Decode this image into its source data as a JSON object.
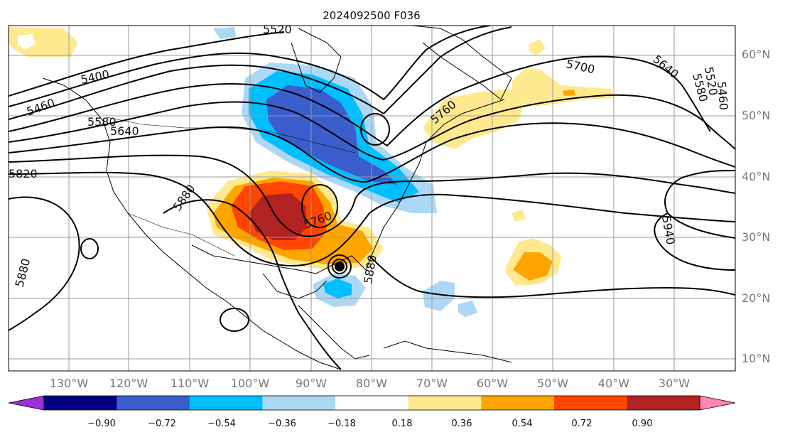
{
  "title": "2024092500 F036",
  "lon_ticks": [
    "130°W",
    "120°W",
    "110°W",
    "100°W",
    "90°W",
    "80°W",
    "70°W",
    "60°W",
    "50°W",
    "40°W",
    "30°W"
  ],
  "lat_ticks": [
    "60°N",
    "50°N",
    "40°N",
    "30°N",
    "20°N",
    "10°N"
  ],
  "contour_labels": [
    "5520",
    "5400",
    "5460",
    "5580",
    "5640",
    "5820",
    "5880",
    "5760",
    "5880",
    "5700",
    "5640",
    "5580",
    "5520",
    "5460",
    "5940",
    "5760",
    "5880"
  ],
  "colorbar": {
    "ticks": [
      "−0.90",
      "−0.72",
      "−0.54",
      "−0.36",
      "−0.18",
      "0.18",
      "0.36",
      "0.54",
      "0.72",
      "0.90"
    ],
    "colors": [
      "#9b30d9",
      "#000080",
      "#3a5fcd",
      "#00bfff",
      "#add8f5",
      "#ffffff",
      "#ffe98f",
      "#ffa500",
      "#ff4500",
      "#b22222",
      "#ff85b4"
    ]
  },
  "colors": {
    "neg_strong": "#3a5fcd",
    "neg_mid": "#00bfff",
    "neg_weak": "#add8f5",
    "pos_weak": "#ffe98f",
    "pos_mid": "#ffa500",
    "pos_strong": "#ff4500",
    "pos_max": "#b22222",
    "grid": "#9a9a9a"
  }
}
